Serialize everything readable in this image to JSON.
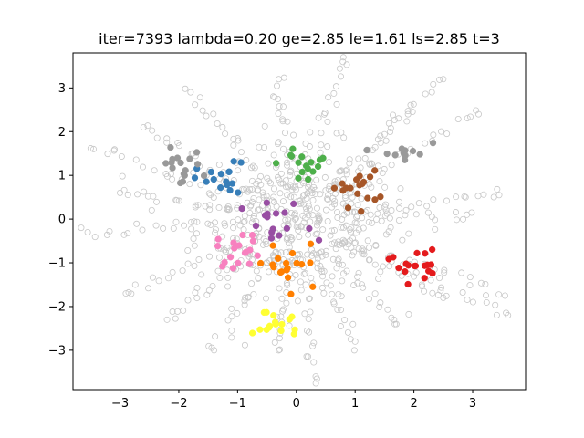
{
  "chart_data": {
    "type": "scatter",
    "title": "iter=7393  lambda=0.20  ge=2.85  le=1.61  ls=2.85  t=3",
    "xlabel": "",
    "ylabel": "",
    "xlim": [
      -3.8,
      3.9
    ],
    "ylim": [
      -3.9,
      3.8
    ],
    "grid": false,
    "x_ticks": [
      -3,
      -2,
      -1,
      0,
      1,
      2,
      3
    ],
    "y_ticks": [
      -3,
      -2,
      -1,
      0,
      1,
      2,
      3
    ],
    "x_tick_labels": [
      "−3",
      "−2",
      "−1",
      "0",
      "1",
      "2",
      "3"
    ],
    "y_tick_labels": [
      "−3",
      "−2",
      "−1",
      "0",
      "1",
      "2",
      "3"
    ],
    "background_points_color": "#c8c8c8",
    "arms": [
      {
        "x": 3.45,
        "y": 0.55
      },
      {
        "x": 3.55,
        "y": -1.75
      },
      {
        "x": 3.1,
        "y": 2.4
      },
      {
        "x": 2.5,
        "y": 3.2
      },
      {
        "x": 0.8,
        "y": 3.7
      },
      {
        "x": -0.3,
        "y": 3.2
      },
      {
        "x": -1.8,
        "y": 2.9
      },
      {
        "x": -3.45,
        "y": 1.6
      },
      {
        "x": -3.55,
        "y": -0.3
      },
      {
        "x": -2.9,
        "y": -1.7
      },
      {
        "x": -1.4,
        "y": -3.0
      },
      {
        "x": -0.3,
        "y": -3.0
      },
      {
        "x": 0.35,
        "y": -3.65
      },
      {
        "x": 1.0,
        "y": -2.8
      },
      {
        "x": 2.5,
        "y": -1.8
      },
      {
        "x": 3.6,
        "y": -2.2
      },
      {
        "x": 1.9,
        "y": 2.4
      },
      {
        "x": -2.6,
        "y": 2.1
      },
      {
        "x": -2.2,
        "y": -2.3
      },
      {
        "x": 1.7,
        "y": -2.4
      },
      {
        "x": 2.9,
        "y": 0.1
      },
      {
        "x": -3.0,
        "y": 0.6
      }
    ],
    "clusters": [
      {
        "color": "#e41a1c",
        "center": [
          2.0,
          -1.0
        ],
        "count": 18,
        "spread": 0.22
      },
      {
        "color": "#377eb8",
        "center": [
          -1.25,
          0.85
        ],
        "count": 18,
        "spread": 0.22
      },
      {
        "color": "#4daf4a",
        "center": [
          0.15,
          1.25
        ],
        "count": 16,
        "spread": 0.22
      },
      {
        "color": "#984ea3",
        "center": [
          -0.3,
          -0.2
        ],
        "count": 16,
        "spread": 0.3
      },
      {
        "color": "#ff7f00",
        "center": [
          -0.1,
          -1.15
        ],
        "count": 18,
        "spread": 0.35
      },
      {
        "color": "#ffff33",
        "center": [
          -0.3,
          -2.35
        ],
        "count": 16,
        "spread": 0.2
      },
      {
        "color": "#a65628",
        "center": [
          1.0,
          0.7
        ],
        "count": 18,
        "spread": 0.2
      },
      {
        "color": "#f781bf",
        "center": [
          -0.95,
          -0.7
        ],
        "count": 18,
        "spread": 0.2
      },
      {
        "color": "#999999",
        "center": [
          -2.0,
          1.2
        ],
        "count": 16,
        "spread": 0.2
      },
      {
        "color": "#999999",
        "center": [
          1.8,
          1.5
        ],
        "count": 12,
        "spread": 0.2
      }
    ]
  }
}
